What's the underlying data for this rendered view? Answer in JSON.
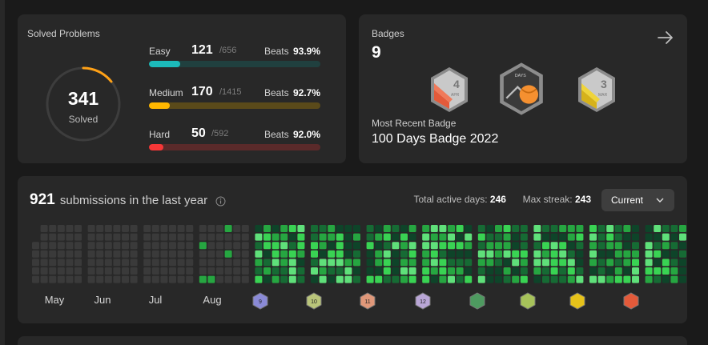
{
  "solved": {
    "title": "Solved Problems",
    "total": "341",
    "total_label": "Solved",
    "difficulties": [
      {
        "name": "Easy",
        "count": "121",
        "total": "/656",
        "beats_label": "Beats",
        "beats": "93.9%",
        "progress": 0.184,
        "color": "#1cbaba",
        "track": "#20403f"
      },
      {
        "name": "Medium",
        "count": "170",
        "total": "/1415",
        "beats_label": "Beats",
        "beats": "92.7%",
        "progress": 0.12,
        "color": "#ffb700",
        "track": "#5a4a1a"
      },
      {
        "name": "Hard",
        "count": "50",
        "total": "/592",
        "beats_label": "Beats",
        "beats": "92.0%",
        "progress": 0.084,
        "color": "#f63737",
        "track": "#5a2a2a"
      }
    ]
  },
  "badges": {
    "title": "Badges",
    "count": "9",
    "items": [
      {
        "icon": "april-badge-icon",
        "text": "4",
        "sub": "APR",
        "color": "#e35a3a"
      },
      {
        "icon": "100-days-badge-icon",
        "text": "DAYS",
        "sub": "",
        "color": "#f59030"
      },
      {
        "icon": "march-badge-icon",
        "text": "3",
        "sub": "MAR",
        "color": "#e6c21a"
      }
    ],
    "recent_label": "Most Recent Badge",
    "recent_name": "100 Days Badge 2022"
  },
  "submissions": {
    "count": "921",
    "label": "submissions in the last year",
    "active_label": "Total active days:",
    "active_value": "246",
    "streak_label": "Max streak:",
    "streak_value": "243",
    "dropdown_value": "Current",
    "months": [
      "May",
      "Jun",
      "Jul",
      "Aug"
    ],
    "month_badges": [
      {
        "text": "9",
        "color": "#8a8ad6"
      },
      {
        "text": "10",
        "color": "#b9c57a"
      },
      {
        "text": "11",
        "color": "#e0987a"
      },
      {
        "text": "12",
        "color": "#b9a6d6"
      },
      {
        "text": "",
        "color": "#4e9a60"
      },
      {
        "text": "",
        "color": "#a6c25a"
      },
      {
        "text": "",
        "color": "#e6c21a"
      },
      {
        "text": "",
        "color": "#e35a3a"
      }
    ]
  }
}
